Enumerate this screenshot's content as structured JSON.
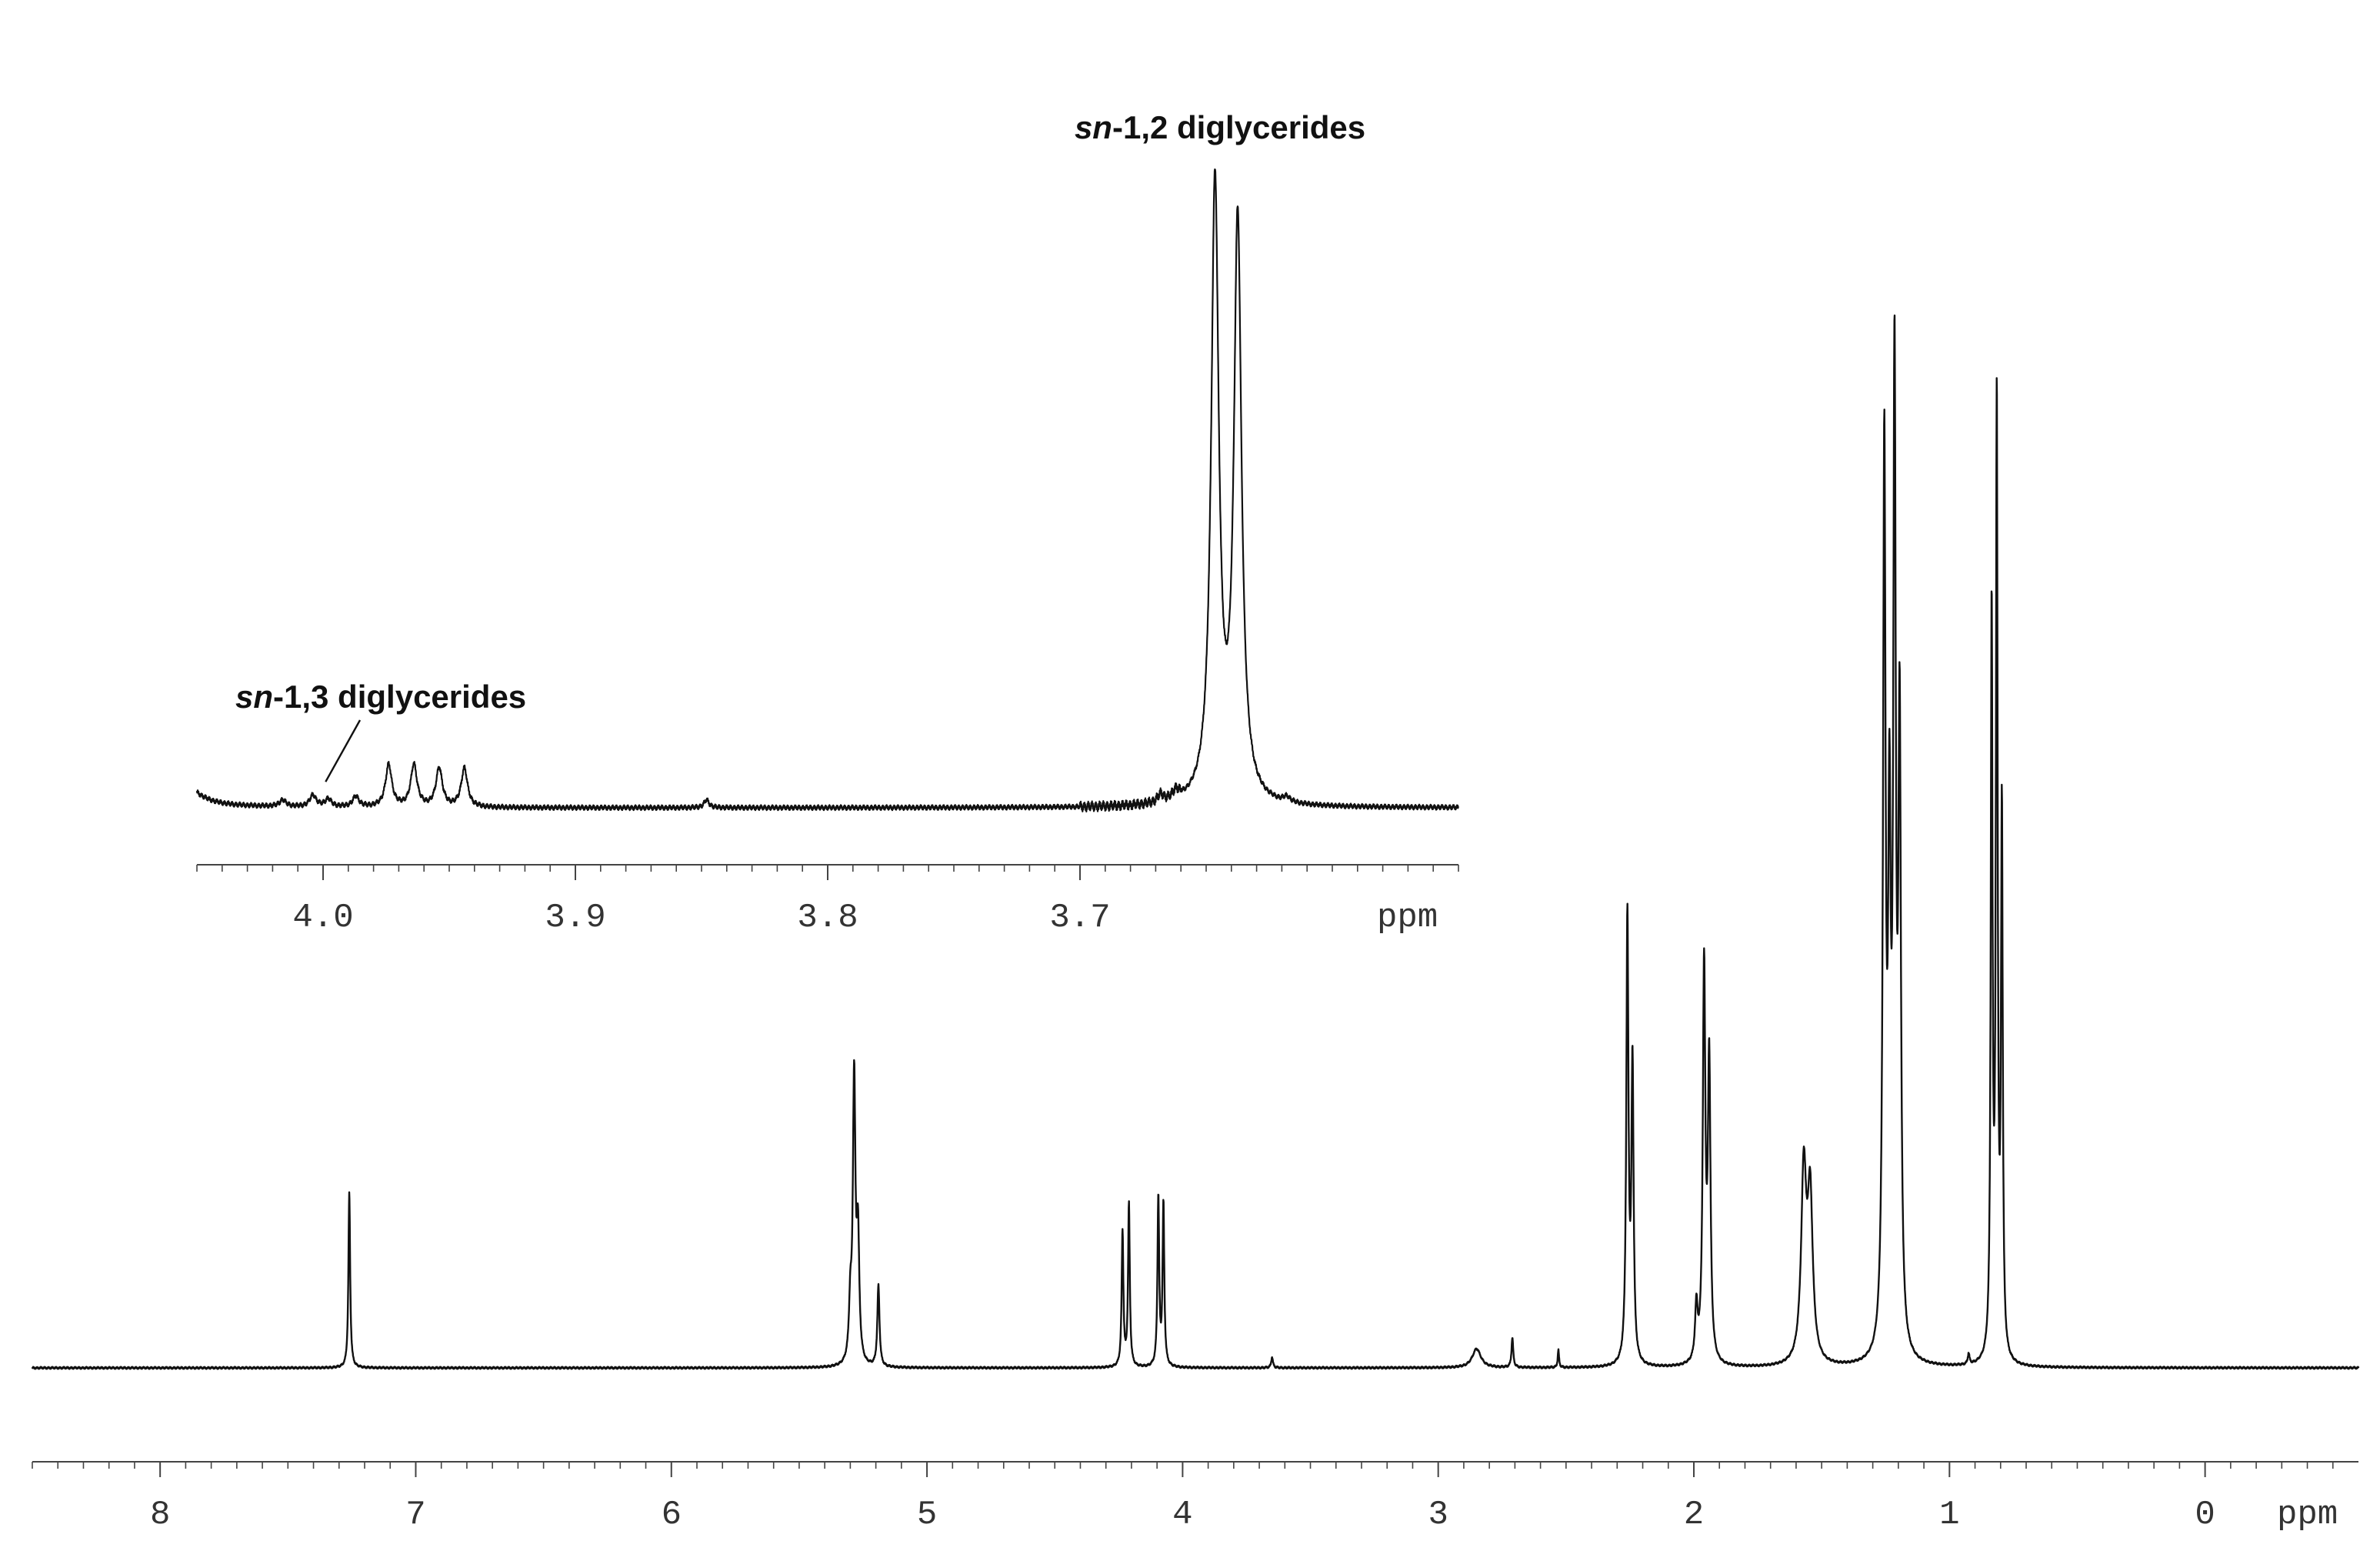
{
  "colors": {
    "trace": "#111111",
    "axis": "#444444",
    "text": "#333333",
    "background": "#ffffff"
  },
  "chart_data": [
    {
      "type": "line",
      "role": "main",
      "xlabel": "ppm",
      "x_direction": "descending",
      "xlim": [
        8.5,
        -0.6
      ],
      "ylim": [
        0,
        1.0
      ],
      "xticks": [
        8,
        7,
        6,
        5,
        4,
        3,
        2,
        1,
        0
      ],
      "xtick_labels": [
        "8",
        "7",
        "6",
        "5",
        "4",
        "3",
        "2",
        "1",
        "0"
      ],
      "minor_tick_step": 0.1,
      "grid": false,
      "peaks": [
        {
          "x": 7.26,
          "height": 0.13,
          "width": 0.004
        },
        {
          "x": 5.3,
          "height": 0.04,
          "width": 0.006
        },
        {
          "x": 5.285,
          "height": 0.21,
          "width": 0.006
        },
        {
          "x": 5.27,
          "height": 0.09,
          "width": 0.006
        },
        {
          "x": 5.19,
          "height": 0.06,
          "width": 0.005
        },
        {
          "x": 4.235,
          "height": 0.1,
          "width": 0.004
        },
        {
          "x": 4.21,
          "height": 0.12,
          "width": 0.004
        },
        {
          "x": 4.095,
          "height": 0.125,
          "width": 0.004
        },
        {
          "x": 4.075,
          "height": 0.12,
          "width": 0.004
        },
        {
          "x": 3.65,
          "height": 0.008,
          "width": 0.004
        },
        {
          "x": 2.85,
          "height": 0.014,
          "width": 0.02
        },
        {
          "x": 2.71,
          "height": 0.022,
          "width": 0.004
        },
        {
          "x": 2.53,
          "height": 0.013,
          "width": 0.003
        },
        {
          "x": 2.26,
          "height": 0.33,
          "width": 0.005
        },
        {
          "x": 2.24,
          "height": 0.22,
          "width": 0.005
        },
        {
          "x": 1.99,
          "height": 0.04,
          "width": 0.006
        },
        {
          "x": 1.96,
          "height": 0.29,
          "width": 0.006
        },
        {
          "x": 1.94,
          "height": 0.22,
          "width": 0.006
        },
        {
          "x": 1.57,
          "height": 0.14,
          "width": 0.012
        },
        {
          "x": 1.545,
          "height": 0.12,
          "width": 0.012
        },
        {
          "x": 1.255,
          "height": 0.66,
          "width": 0.006
        },
        {
          "x": 1.235,
          "height": 0.35,
          "width": 0.006
        },
        {
          "x": 1.215,
          "height": 0.7,
          "width": 0.006
        },
        {
          "x": 1.195,
          "height": 0.45,
          "width": 0.006
        },
        {
          "x": 0.925,
          "height": 0.008,
          "width": 0.004
        },
        {
          "x": 0.835,
          "height": 0.55,
          "width": 0.004
        },
        {
          "x": 0.815,
          "height": 0.7,
          "width": 0.004
        },
        {
          "x": 0.795,
          "height": 0.4,
          "width": 0.004
        }
      ]
    },
    {
      "type": "line",
      "role": "inset",
      "xlabel": "ppm",
      "x_direction": "descending",
      "xlim": [
        4.05,
        3.55
      ],
      "ylim": [
        0,
        1.0
      ],
      "xticks": [
        4.0,
        3.9,
        3.8,
        3.7
      ],
      "xtick_labels": [
        "4.0",
        "3.9",
        "3.8",
        "3.7"
      ],
      "minor_tick_step": 0.01,
      "grid": false,
      "peaks": [
        {
          "x": 4.016,
          "height": 0.01,
          "width": 0.0015
        },
        {
          "x": 4.004,
          "height": 0.018,
          "width": 0.0015
        },
        {
          "x": 3.998,
          "height": 0.012,
          "width": 0.0015
        },
        {
          "x": 3.987,
          "height": 0.016,
          "width": 0.0015
        },
        {
          "x": 3.974,
          "height": 0.065,
          "width": 0.0015
        },
        {
          "x": 3.964,
          "height": 0.065,
          "width": 0.0015
        },
        {
          "x": 3.954,
          "height": 0.06,
          "width": 0.0015
        },
        {
          "x": 3.944,
          "height": 0.06,
          "width": 0.0015
        },
        {
          "x": 3.848,
          "height": 0.012,
          "width": 0.0012
        },
        {
          "x": 3.668,
          "height": 0.012,
          "width": 0.0015
        },
        {
          "x": 3.662,
          "height": 0.014,
          "width": 0.0015
        },
        {
          "x": 3.6465,
          "height": 0.95,
          "width": 0.0018
        },
        {
          "x": 3.6375,
          "height": 0.89,
          "width": 0.0018
        },
        {
          "x": 3.618,
          "height": 0.008,
          "width": 0.0015
        }
      ],
      "annotations": [
        {
          "text_italic": "sn",
          "text": "-1,2 diglycerides",
          "x": 3.6445
        },
        {
          "text_italic": "sn",
          "text": "-1,3 diglycerides",
          "x": 3.999
        }
      ]
    }
  ]
}
